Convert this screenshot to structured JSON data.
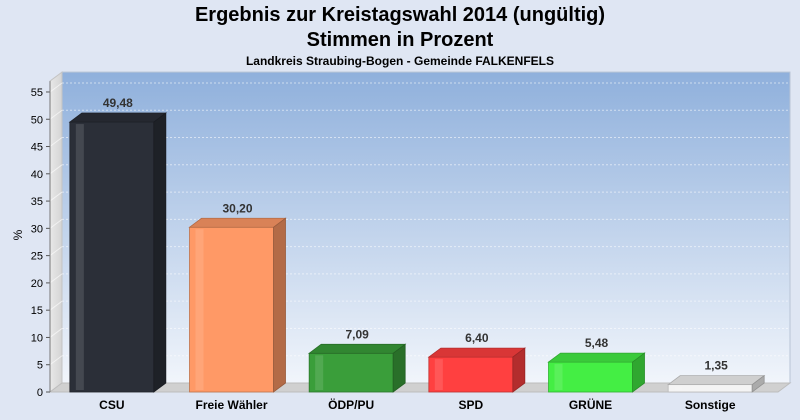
{
  "chart_data": {
    "type": "bar",
    "title": "Ergebnis zur Kreistagswahl 2014 (ungültig)",
    "title_line2": "Stimmen in Prozent",
    "subtitle": "Landkreis Straubing-Bogen - Gemeinde FALKENFELS",
    "ylabel": "%",
    "xlabel": "",
    "ylim": [
      0,
      57
    ],
    "yticks": [
      0,
      5,
      10,
      15,
      20,
      25,
      30,
      35,
      40,
      45,
      50,
      55
    ],
    "grid": true,
    "legend": "none",
    "categories": [
      "CSU",
      "Freie Wähler",
      "ÖDP/PU",
      "SPD",
      "GRÜNE",
      "Sonstige"
    ],
    "values": [
      49.48,
      30.2,
      7.09,
      6.4,
      5.48,
      1.35
    ],
    "value_labels": [
      "49,48",
      "30,20",
      "7,09",
      "6,40",
      "5,48",
      "1,35"
    ],
    "colors": [
      "#2b2f38",
      "#ff9966",
      "#3a9e3a",
      "#ff4040",
      "#44ee44",
      "#f4f4f4"
    ]
  }
}
